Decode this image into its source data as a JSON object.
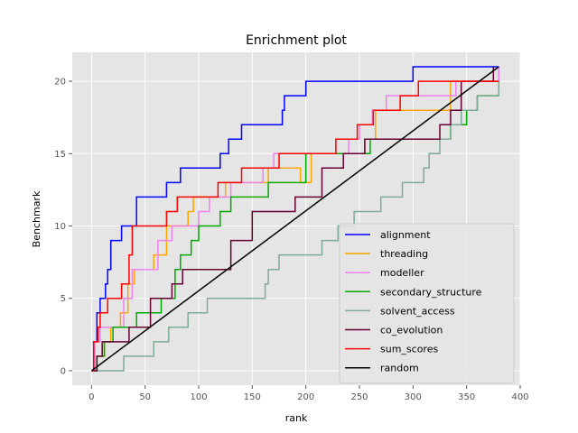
{
  "chart_data": {
    "type": "line",
    "title": "Enrichment plot",
    "xlabel": "rank",
    "ylabel": "Benchmark",
    "xlim": [
      -18,
      400
    ],
    "ylim": [
      -1,
      22
    ],
    "xticks": [
      0,
      50,
      100,
      150,
      200,
      250,
      300,
      350,
      400
    ],
    "yticks": [
      0,
      5,
      10,
      15,
      20
    ],
    "grid": true,
    "legend_position": "lower-right",
    "series": [
      {
        "name": "alignment",
        "color": "#0000ff",
        "step": true,
        "x": [
          0,
          2,
          5,
          8,
          13,
          15,
          18,
          28,
          35,
          42,
          70,
          78,
          83,
          120,
          128,
          140,
          178,
          180,
          200,
          300,
          380
        ],
        "y": [
          0,
          2,
          4,
          5,
          6,
          7,
          9,
          10,
          10,
          12,
          13,
          13,
          14,
          15,
          16,
          17,
          18,
          19,
          20,
          21,
          21
        ]
      },
      {
        "name": "threading",
        "color": "#ffa500",
        "step": true,
        "x": [
          0,
          5,
          12,
          18,
          27,
          34,
          40,
          55,
          58,
          70,
          90,
          95,
          115,
          125,
          165,
          195,
          205,
          245,
          255,
          265,
          320,
          335,
          380
        ],
        "y": [
          0,
          1,
          2,
          3,
          4,
          6,
          7,
          7,
          8,
          10,
          11,
          12,
          12,
          13,
          14,
          13,
          15,
          15,
          16,
          18,
          18,
          20,
          21
        ]
      },
      {
        "name": "modeller",
        "color": "#ee82ee",
        "step": true,
        "x": [
          0,
          3,
          8,
          15,
          30,
          38,
          55,
          62,
          75,
          90,
          100,
          110,
          130,
          160,
          170,
          205,
          240,
          250,
          262,
          275,
          305,
          340,
          380
        ],
        "y": [
          0,
          2,
          3,
          3,
          5,
          7,
          7,
          9,
          10,
          10,
          11,
          12,
          13,
          14,
          15,
          15,
          16,
          17,
          18,
          19,
          19,
          20,
          21
        ]
      },
      {
        "name": "secondary_structure",
        "color": "#00aa00",
        "step": true,
        "x": [
          0,
          5,
          12,
          20,
          35,
          42,
          65,
          78,
          83,
          93,
          100,
          120,
          130,
          150,
          165,
          190,
          200,
          230,
          255,
          260,
          310,
          335,
          350,
          360,
          380
        ],
        "y": [
          0,
          1,
          2,
          3,
          3,
          4,
          5,
          7,
          8,
          9,
          10,
          11,
          12,
          12,
          13,
          13,
          15,
          15,
          15,
          16,
          16,
          17,
          18,
          19,
          19
        ]
      },
      {
        "name": "solvent_access",
        "color": "#7faa95",
        "step": true,
        "x": [
          0,
          15,
          30,
          50,
          58,
          72,
          90,
          108,
          160,
          162,
          165,
          170,
          175,
          210,
          215,
          220,
          230,
          245,
          255,
          270,
          290,
          300,
          310,
          315,
          325,
          335,
          345,
          360,
          380
        ],
        "y": [
          0,
          0,
          1,
          1,
          2,
          3,
          4,
          5,
          5,
          6,
          7,
          7,
          8,
          8,
          9,
          9,
          10,
          11,
          11,
          12,
          13,
          13,
          14,
          15,
          16,
          17,
          18,
          19,
          20
        ]
      },
      {
        "name": "co_evolution",
        "color": "#660033",
        "step": true,
        "x": [
          0,
          5,
          10,
          20,
          35,
          55,
          60,
          75,
          85,
          105,
          130,
          150,
          190,
          215,
          235,
          255,
          270,
          300,
          325,
          335,
          345,
          375
        ],
        "y": [
          0,
          1,
          2,
          2,
          3,
          5,
          5,
          6,
          7,
          7,
          9,
          11,
          12,
          14,
          15,
          16,
          16,
          16,
          17,
          18,
          20,
          21
        ]
      },
      {
        "name": "sum_scores",
        "color": "#ff0000",
        "step": true,
        "x": [
          0,
          2,
          6,
          8,
          15,
          28,
          35,
          38,
          43,
          48,
          70,
          80,
          100,
          118,
          140,
          155,
          175,
          205,
          228,
          248,
          263,
          288,
          305,
          350,
          380
        ],
        "y": [
          0,
          2,
          3,
          4,
          5,
          6,
          8,
          10,
          10,
          10,
          11,
          12,
          12,
          13,
          14,
          14,
          15,
          15,
          16,
          17,
          18,
          19,
          20,
          20,
          20
        ]
      },
      {
        "name": "random",
        "color": "#000000",
        "step": false,
        "x": [
          0,
          380
        ],
        "y": [
          0,
          21
        ]
      }
    ]
  }
}
